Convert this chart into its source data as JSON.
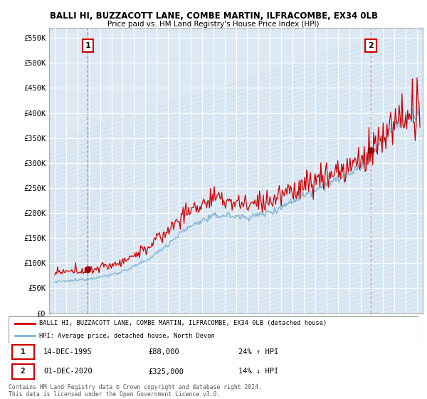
{
  "title": "BALLI HI, BUZZACOTT LANE, COMBE MARTIN, ILFRACOMBE, EX34 0LB",
  "subtitle": "Price paid vs. HM Land Registry's House Price Index (HPI)",
  "ylim": [
    0,
    570000
  ],
  "yticks": [
    0,
    50000,
    100000,
    150000,
    200000,
    250000,
    300000,
    350000,
    400000,
    450000,
    500000,
    550000
  ],
  "ytick_labels": [
    "£0",
    "£50K",
    "£100K",
    "£150K",
    "£200K",
    "£250K",
    "£300K",
    "£350K",
    "£400K",
    "£450K",
    "£500K",
    "£550K"
  ],
  "background_color": "#ffffff",
  "plot_bg_color": "#dce9f5",
  "grid_color": "#ffffff",
  "red_line_color": "#cc0000",
  "blue_line_color": "#7fb3d3",
  "marker_color": "#990000",
  "marker_size": 6,
  "point1_date": "14-DEC-1995",
  "point1_price": "£88,000",
  "point1_hpi": "24% ↑ HPI",
  "point2_date": "01-DEC-2020",
  "point2_price": "£325,000",
  "point2_hpi": "14% ↓ HPI",
  "legend_line1": "BALLI HI, BUZZACOTT LANE, COMBE MARTIN, ILFRACOMBE, EX34 0LB (detached house)",
  "legend_line2": "HPI: Average price, detached house, North Devon",
  "footer": "Contains HM Land Registry data © Crown copyright and database right 2024.\nThis data is licensed under the Open Government Licence v3.0.",
  "x_start_year": 1993,
  "x_end_year": 2025,
  "sale1_year": 1995.917,
  "sale1_price": 88000,
  "sale2_year": 2020.917,
  "sale2_price": 325000
}
